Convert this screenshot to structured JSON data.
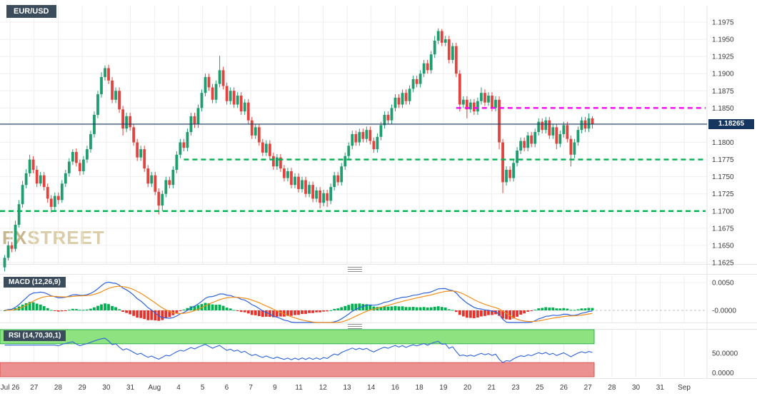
{
  "header": {
    "instrument_label": "EUR/USD"
  },
  "watermark": {
    "part1": "FX",
    "part2": "STREET"
  },
  "price_tag": {
    "label": "1.18265"
  },
  "indicators": {
    "macd_title": "MACD (12,26,9)",
    "rsi_title": "RSI (14,70,30,1)"
  },
  "chart_data": {
    "type": "candlestick",
    "instrument": "EUR/USD",
    "price_range": {
      "top": 1.1975,
      "bottom": 1.1625
    },
    "price_labels": [
      "1.1975",
      "1.1950",
      "1.1925",
      "1.1900",
      "1.1875",
      "1.1850",
      "1.1825",
      "1.1800",
      "1.1775",
      "1.1750",
      "1.1725",
      "1.1700",
      "1.1675",
      "1.1650",
      "1.1625"
    ],
    "time_labels": [
      "Jul 26",
      "27",
      "28",
      "29",
      "30",
      "31",
      "Aug",
      "4",
      "5",
      "6",
      "7",
      "9",
      "11",
      "12",
      "13",
      "14",
      "16",
      "18",
      "19",
      "20",
      "21",
      "23",
      "25",
      "26",
      "27",
      "28",
      "30",
      "31",
      "Sep"
    ],
    "current_price": 1.18265,
    "current_price_label": "1.18265",
    "levels": [
      {
        "name": "resistance-line-magenta",
        "price": 1.185,
        "color": "#ff00ff",
        "from_candle": 126
      },
      {
        "name": "support-line-green-upper",
        "price": 1.1775,
        "color": "#00b050",
        "from_candle": 50
      },
      {
        "name": "support-line-green-lower",
        "price": 1.17,
        "color": "#00b050",
        "from_candle": 0
      }
    ],
    "colors": {
      "up": "#1f9d6f",
      "down": "#e1443e",
      "hist_up": "#00b050",
      "hist_down": "#e8312a",
      "macd_line": "#2e62d9",
      "signal_line": "#ef8e1b",
      "rsi_line": "#2e62d9",
      "current_price_line": "#17365f",
      "rsi_overbought_band": "#8ee27f",
      "rsi_oversold_band": "#eb9191"
    },
    "indicators": {
      "macd": {
        "label": "MACD (12,26,9)",
        "params": [
          12,
          26,
          9
        ],
        "axis_labels": [
          "0.0050",
          "-0.0000"
        ],
        "scale_top": 0.005
      },
      "rsi": {
        "label": "RSI (14,70,30,1)",
        "params": [
          14,
          70,
          30,
          1
        ],
        "overbought": 70,
        "oversold": 30,
        "axis_labels": [
          "50.0000",
          "0.0000"
        ]
      }
    },
    "candles": [
      [
        1.1618,
        1.1636,
        1.1612,
        1.1632
      ],
      [
        1.1632,
        1.1656,
        1.1628,
        1.165
      ],
      [
        1.165,
        1.1655,
        1.164,
        1.1645
      ],
      [
        1.1645,
        1.1686,
        1.1641,
        1.168
      ],
      [
        1.168,
        1.1716,
        1.1676,
        1.171
      ],
      [
        1.171,
        1.1744,
        1.1705,
        1.1738
      ],
      [
        1.1738,
        1.1761,
        1.1733,
        1.1755
      ],
      [
        1.1755,
        1.1782,
        1.175,
        1.1775
      ],
      [
        1.1775,
        1.178,
        1.1755,
        1.176
      ],
      [
        1.176,
        1.1766,
        1.1735,
        1.174
      ],
      [
        1.174,
        1.1757,
        1.1736,
        1.1752
      ],
      [
        1.1752,
        1.1757,
        1.173,
        1.1735
      ],
      [
        1.1735,
        1.174,
        1.1712,
        1.1718
      ],
      [
        1.1718,
        1.1723,
        1.1698,
        1.1706
      ],
      [
        1.1706,
        1.1727,
        1.1701,
        1.1722
      ],
      [
        1.1722,
        1.1727,
        1.171,
        1.1716
      ],
      [
        1.1716,
        1.1745,
        1.1712,
        1.174
      ],
      [
        1.174,
        1.176,
        1.1735,
        1.1755
      ],
      [
        1.1755,
        1.1777,
        1.175,
        1.1772
      ],
      [
        1.1772,
        1.179,
        1.1767,
        1.1786
      ],
      [
        1.1786,
        1.1791,
        1.1765,
        1.177
      ],
      [
        1.177,
        1.1775,
        1.1752,
        1.1758
      ],
      [
        1.1758,
        1.178,
        1.1753,
        1.1775
      ],
      [
        1.1775,
        1.1795,
        1.177,
        1.179
      ],
      [
        1.179,
        1.1817,
        1.1785,
        1.1812
      ],
      [
        1.1812,
        1.1845,
        1.1807,
        1.184
      ],
      [
        1.184,
        1.1875,
        1.1835,
        1.187
      ],
      [
        1.187,
        1.1902,
        1.1865,
        1.1895
      ],
      [
        1.1895,
        1.1912,
        1.189,
        1.1908
      ],
      [
        1.1908,
        1.1913,
        1.1885,
        1.189
      ],
      [
        1.189,
        1.1895,
        1.1857,
        1.1862
      ],
      [
        1.1862,
        1.188,
        1.1857,
        1.1875
      ],
      [
        1.1875,
        1.188,
        1.1843,
        1.1848
      ],
      [
        1.1848,
        1.1853,
        1.181,
        1.182
      ],
      [
        1.182,
        1.1843,
        1.1815,
        1.1838
      ],
      [
        1.1838,
        1.1843,
        1.1817,
        1.1822
      ],
      [
        1.1822,
        1.1827,
        1.1795,
        1.18
      ],
      [
        1.18,
        1.1805,
        1.1773,
        1.1778
      ],
      [
        1.1778,
        1.1795,
        1.1773,
        1.179
      ],
      [
        1.179,
        1.1795,
        1.1757,
        1.1762
      ],
      [
        1.1762,
        1.1767,
        1.1735,
        1.174
      ],
      [
        1.174,
        1.1757,
        1.1735,
        1.1752
      ],
      [
        1.1752,
        1.1757,
        1.1723,
        1.1728
      ],
      [
        1.1728,
        1.1733,
        1.1695,
        1.1708
      ],
      [
        1.1708,
        1.173,
        1.17,
        1.1725
      ],
      [
        1.1725,
        1.175,
        1.172,
        1.1745
      ],
      [
        1.1745,
        1.175,
        1.1733,
        1.1738
      ],
      [
        1.1738,
        1.1765,
        1.1733,
        1.176
      ],
      [
        1.176,
        1.1787,
        1.1755,
        1.1782
      ],
      [
        1.1782,
        1.1805,
        1.1777,
        1.18
      ],
      [
        1.18,
        1.1805,
        1.1787,
        1.1792
      ],
      [
        1.1792,
        1.182,
        1.1787,
        1.1815
      ],
      [
        1.1815,
        1.1843,
        1.181,
        1.1838
      ],
      [
        1.1838,
        1.1843,
        1.1821,
        1.1826
      ],
      [
        1.1826,
        1.1855,
        1.1821,
        1.185
      ],
      [
        1.185,
        1.1877,
        1.1845,
        1.1872
      ],
      [
        1.1872,
        1.19,
        1.1867,
        1.1895
      ],
      [
        1.1895,
        1.19,
        1.1875,
        1.188
      ],
      [
        1.188,
        1.1885,
        1.1857,
        1.1862
      ],
      [
        1.1862,
        1.189,
        1.1857,
        1.1885
      ],
      [
        1.1885,
        1.1926,
        1.188,
        1.1905
      ],
      [
        1.1905,
        1.191,
        1.1877,
        1.1882
      ],
      [
        1.1882,
        1.1887,
        1.1855,
        1.186
      ],
      [
        1.186,
        1.188,
        1.1855,
        1.1875
      ],
      [
        1.1875,
        1.188,
        1.185,
        1.1855
      ],
      [
        1.1855,
        1.1873,
        1.185,
        1.1868
      ],
      [
        1.1868,
        1.1873,
        1.184,
        1.1845
      ],
      [
        1.1845,
        1.1863,
        1.184,
        1.1858
      ],
      [
        1.1858,
        1.1863,
        1.1827,
        1.1832
      ],
      [
        1.1832,
        1.1837,
        1.1805,
        1.181
      ],
      [
        1.181,
        1.1827,
        1.1805,
        1.1822
      ],
      [
        1.1822,
        1.1827,
        1.1795,
        1.18
      ],
      [
        1.18,
        1.1805,
        1.178,
        1.1785
      ],
      [
        1.1785,
        1.1803,
        1.178,
        1.1798
      ],
      [
        1.1798,
        1.1803,
        1.1775,
        1.178
      ],
      [
        1.178,
        1.1785,
        1.176,
        1.1765
      ],
      [
        1.1765,
        1.1783,
        1.176,
        1.1778
      ],
      [
        1.1778,
        1.1783,
        1.1757,
        1.1762
      ],
      [
        1.1762,
        1.1767,
        1.1743,
        1.1748
      ],
      [
        1.1748,
        1.1763,
        1.1743,
        1.1758
      ],
      [
        1.1758,
        1.1763,
        1.1733,
        1.1738
      ],
      [
        1.1738,
        1.1755,
        1.1733,
        1.175
      ],
      [
        1.175,
        1.1755,
        1.1727,
        1.1732
      ],
      [
        1.1732,
        1.175,
        1.1727,
        1.1745
      ],
      [
        1.1745,
        1.175,
        1.172,
        1.1725
      ],
      [
        1.1725,
        1.1743,
        1.172,
        1.1738
      ],
      [
        1.1738,
        1.1743,
        1.1713,
        1.1718
      ],
      [
        1.1718,
        1.1735,
        1.1713,
        1.173
      ],
      [
        1.173,
        1.1735,
        1.1704,
        1.1712
      ],
      [
        1.1712,
        1.1731,
        1.1707,
        1.1726
      ],
      [
        1.1726,
        1.1731,
        1.1706,
        1.1715
      ],
      [
        1.1715,
        1.174,
        1.171,
        1.1735
      ],
      [
        1.1735,
        1.1757,
        1.173,
        1.1752
      ],
      [
        1.1752,
        1.1757,
        1.1737,
        1.1742
      ],
      [
        1.1742,
        1.177,
        1.1737,
        1.1765
      ],
      [
        1.1765,
        1.1785,
        1.176,
        1.178
      ],
      [
        1.178,
        1.18,
        1.1775,
        1.1795
      ],
      [
        1.1795,
        1.1817,
        1.179,
        1.1812
      ],
      [
        1.1812,
        1.1817,
        1.1795,
        1.18
      ],
      [
        1.18,
        1.182,
        1.1795,
        1.1815
      ],
      [
        1.1815,
        1.182,
        1.18,
        1.1805
      ],
      [
        1.1805,
        1.1823,
        1.18,
        1.1818
      ],
      [
        1.1818,
        1.1823,
        1.1797,
        1.1802
      ],
      [
        1.1802,
        1.1807,
        1.1785,
        1.179
      ],
      [
        1.179,
        1.1813,
        1.1785,
        1.1808
      ],
      [
        1.1808,
        1.183,
        1.1803,
        1.1825
      ],
      [
        1.1825,
        1.1845,
        1.182,
        1.184
      ],
      [
        1.184,
        1.1845,
        1.1827,
        1.1832
      ],
      [
        1.1832,
        1.1855,
        1.1827,
        1.185
      ],
      [
        1.185,
        1.187,
        1.1845,
        1.1865
      ],
      [
        1.1865,
        1.187,
        1.185,
        1.1855
      ],
      [
        1.1855,
        1.1877,
        1.185,
        1.1872
      ],
      [
        1.1872,
        1.1877,
        1.1855,
        1.186
      ],
      [
        1.186,
        1.1883,
        1.1855,
        1.1878
      ],
      [
        1.1878,
        1.1897,
        1.1873,
        1.1892
      ],
      [
        1.1892,
        1.1897,
        1.188,
        1.1885
      ],
      [
        1.1885,
        1.1905,
        1.188,
        1.19
      ],
      [
        1.19,
        1.192,
        1.1895,
        1.1915
      ],
      [
        1.1915,
        1.192,
        1.19,
        1.1905
      ],
      [
        1.1905,
        1.1933,
        1.19,
        1.1928
      ],
      [
        1.1928,
        1.1955,
        1.1923,
        1.1948
      ],
      [
        1.1948,
        1.1966,
        1.1943,
        1.1962
      ],
      [
        1.1962,
        1.1965,
        1.194,
        1.1945
      ],
      [
        1.1945,
        1.1955,
        1.194,
        1.195
      ],
      [
        1.195,
        1.1955,
        1.1915,
        1.192
      ],
      [
        1.192,
        1.1945,
        1.1915,
        1.194
      ],
      [
        1.194,
        1.1945,
        1.1895,
        1.19
      ],
      [
        1.19,
        1.1905,
        1.1845,
        1.1855
      ],
      [
        1.1855,
        1.1867,
        1.185,
        1.1862
      ],
      [
        1.1862,
        1.1867,
        1.1835,
        1.1848
      ],
      [
        1.1848,
        1.1863,
        1.1843,
        1.1858
      ],
      [
        1.1858,
        1.1863,
        1.184,
        1.1845
      ],
      [
        1.1845,
        1.1865,
        1.184,
        1.186
      ],
      [
        1.186,
        1.188,
        1.1855,
        1.1872
      ],
      [
        1.1872,
        1.1877,
        1.1853,
        1.1858
      ],
      [
        1.1858,
        1.1873,
        1.1853,
        1.1868
      ],
      [
        1.1868,
        1.1873,
        1.1845,
        1.185
      ],
      [
        1.185,
        1.1867,
        1.1845,
        1.1862
      ],
      [
        1.1862,
        1.1867,
        1.179,
        1.18
      ],
      [
        1.18,
        1.1805,
        1.1726,
        1.1742
      ],
      [
        1.1742,
        1.1765,
        1.1737,
        1.176
      ],
      [
        1.176,
        1.1765,
        1.1743,
        1.1748
      ],
      [
        1.1748,
        1.1775,
        1.1743,
        1.177
      ],
      [
        1.177,
        1.1793,
        1.1765,
        1.1788
      ],
      [
        1.1788,
        1.1807,
        1.1783,
        1.1802
      ],
      [
        1.1802,
        1.1807,
        1.1787,
        1.1792
      ],
      [
        1.1792,
        1.1815,
        1.1787,
        1.181
      ],
      [
        1.181,
        1.1815,
        1.1793,
        1.1798
      ],
      [
        1.1798,
        1.182,
        1.1793,
        1.1815
      ],
      [
        1.1815,
        1.1835,
        1.181,
        1.183
      ],
      [
        1.183,
        1.1835,
        1.1813,
        1.1818
      ],
      [
        1.1818,
        1.1837,
        1.1813,
        1.1832
      ],
      [
        1.1832,
        1.1837,
        1.1805,
        1.181
      ],
      [
        1.181,
        1.1827,
        1.1805,
        1.1822
      ],
      [
        1.1822,
        1.1827,
        1.179,
        1.1798
      ],
      [
        1.1798,
        1.1817,
        1.1793,
        1.1812
      ],
      [
        1.1812,
        1.183,
        1.1807,
        1.1825
      ],
      [
        1.1825,
        1.183,
        1.18,
        1.1805
      ],
      [
        1.1805,
        1.181,
        1.1765,
        1.1782
      ],
      [
        1.1782,
        1.1805,
        1.1777,
        1.18
      ],
      [
        1.18,
        1.1823,
        1.1795,
        1.1818
      ],
      [
        1.1818,
        1.1837,
        1.1813,
        1.1832
      ],
      [
        1.1832,
        1.1837,
        1.1815,
        1.182
      ],
      [
        1.182,
        1.1842,
        1.1815,
        1.1835
      ],
      [
        1.1835,
        1.1838,
        1.182,
        1.18265
      ]
    ]
  }
}
